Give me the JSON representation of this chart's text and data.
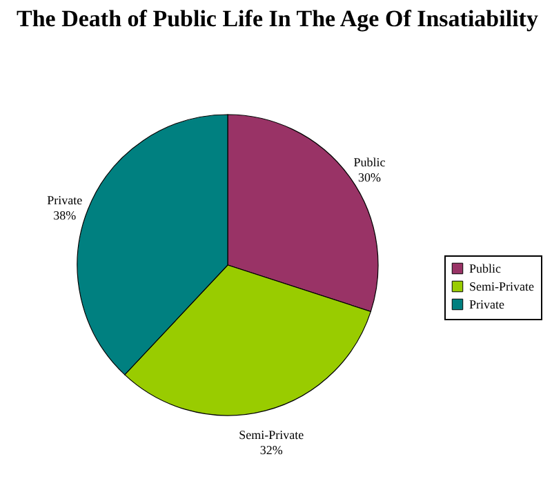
{
  "chart_data": {
    "type": "pie",
    "title": "The Death of Public Life In The Age Of Insatiability",
    "categories": [
      "Public",
      "Semi-Private",
      "Private"
    ],
    "values": [
      30,
      32,
      38
    ],
    "colors": [
      "#993366",
      "#99cc00",
      "#008080"
    ],
    "value_labels": [
      "30%",
      "32%",
      "38%"
    ],
    "legend": "right"
  }
}
